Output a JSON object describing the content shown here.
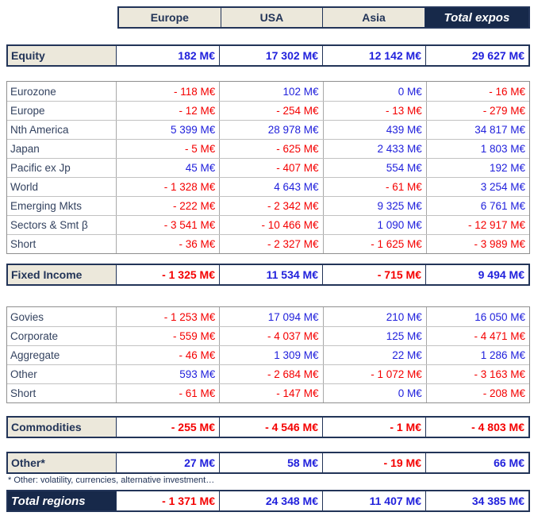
{
  "columns": [
    "Europe",
    "USA",
    "Asia",
    "Total expos"
  ],
  "sections": [
    {
      "kind": "summary",
      "label": "Equity",
      "values": [
        "182 M€",
        "17 302 M€",
        "12 142 M€",
        "29 627 M€"
      ]
    },
    {
      "kind": "detail",
      "rows": [
        {
          "label": "Eurozone",
          "values": [
            "- 118 M€",
            "102 M€",
            "0 M€",
            "- 16 M€"
          ]
        },
        {
          "label": "Europe",
          "values": [
            "- 12 M€",
            "- 254 M€",
            "- 13 M€",
            "- 279 M€"
          ]
        },
        {
          "label": "Nth America",
          "values": [
            "5 399 M€",
            "28 978 M€",
            "439 M€",
            "34 817 M€"
          ]
        },
        {
          "label": "Japan",
          "values": [
            "- 5 M€",
            "- 625 M€",
            "2 433 M€",
            "1 803 M€"
          ]
        },
        {
          "label": "Pacific ex Jp",
          "values": [
            "45 M€",
            "- 407 M€",
            "554 M€",
            "192 M€"
          ]
        },
        {
          "label": "World",
          "values": [
            "- 1 328 M€",
            "4 643 M€",
            "- 61 M€",
            "3 254 M€"
          ]
        },
        {
          "label": "Emerging Mkts",
          "values": [
            "- 222 M€",
            "- 2 342 M€",
            "9 325 M€",
            "6 761 M€"
          ]
        },
        {
          "label": "Sectors & Smt β",
          "values": [
            "- 3 541 M€",
            "- 10 466 M€",
            "1 090 M€",
            "- 12 917 M€"
          ]
        },
        {
          "label": "Short",
          "values": [
            "- 36 M€",
            "- 2 327 M€",
            "- 1 625 M€",
            "- 3 989 M€"
          ]
        }
      ]
    },
    {
      "kind": "summary",
      "label": "Fixed Income",
      "values": [
        "- 1 325 M€",
        "11 534 M€",
        "- 715 M€",
        "9 494 M€"
      ]
    },
    {
      "kind": "detail",
      "rows": [
        {
          "label": "Govies",
          "values": [
            "- 1 253 M€",
            "17 094 M€",
            "210 M€",
            "16 050 M€"
          ]
        },
        {
          "label": "Corporate",
          "values": [
            "- 559 M€",
            "- 4 037 M€",
            "125 M€",
            "- 4 471 M€"
          ]
        },
        {
          "label": "Aggregate",
          "values": [
            "- 46 M€",
            "1 309 M€",
            "22 M€",
            "1 286 M€"
          ]
        },
        {
          "label": "Other",
          "values": [
            "593 M€",
            "- 2 684 M€",
            "- 1 072 M€",
            "- 3 163 M€"
          ]
        },
        {
          "label": "Short",
          "values": [
            "- 61 M€",
            "- 147 M€",
            "0 M€",
            "- 208 M€"
          ]
        }
      ]
    },
    {
      "kind": "summary",
      "label": "Commodities",
      "values": [
        "- 255 M€",
        "- 4 546 M€",
        "- 1 M€",
        "- 4 803 M€"
      ]
    },
    {
      "kind": "summary",
      "label": "Other*",
      "values": [
        "27 M€",
        "58 M€",
        "- 19 M€",
        "66 M€"
      ]
    }
  ],
  "footnote": "* Other: volatility, currencies, alternative investment…",
  "total": {
    "label": "Total regions",
    "values": [
      "- 1 371 M€",
      "24 348 M€",
      "11 407 M€",
      "34 385 M€"
    ]
  },
  "colors": {
    "navy_border": "#223458",
    "navy_fill": "#17294A",
    "beige_header": "#ECE8DB",
    "positive_blue": "#2121DC",
    "negative_red": "#F40000"
  }
}
